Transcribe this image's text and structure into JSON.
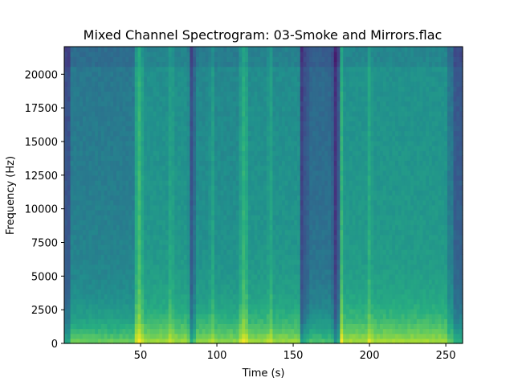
{
  "chart_data": {
    "type": "heatmap",
    "title": "Mixed Channel Spectrogram: 03-Smoke and Mirrors.flac",
    "xlabel": "Time (s)",
    "ylabel": "Frequency (Hz)",
    "xlim": [
      0,
      261
    ],
    "ylim": [
      0,
      22050
    ],
    "x_ticks": [
      50,
      100,
      150,
      200,
      250
    ],
    "y_ticks": [
      0,
      2500,
      5000,
      7500,
      10000,
      12500,
      15000,
      17500,
      20000
    ],
    "x_tick_labels": [
      "50",
      "100",
      "150",
      "200",
      "250"
    ],
    "y_tick_labels": [
      "0",
      "2500",
      "5000",
      "7500",
      "10000",
      "12500",
      "15000",
      "17500",
      "20000"
    ],
    "colormap": "viridis",
    "grid": false,
    "sections": [
      {
        "t_start": 0,
        "t_end": 5,
        "level": 0.3
      },
      {
        "t_start": 5,
        "t_end": 47,
        "level": 0.46
      },
      {
        "t_start": 47,
        "t_end": 52,
        "level": 0.62
      },
      {
        "t_start": 52,
        "t_end": 82,
        "level": 0.55
      },
      {
        "t_start": 82,
        "t_end": 86,
        "level": 0.4
      },
      {
        "t_start": 86,
        "t_end": 115,
        "level": 0.52
      },
      {
        "t_start": 115,
        "t_end": 120,
        "level": 0.6
      },
      {
        "t_start": 120,
        "t_end": 155,
        "level": 0.54
      },
      {
        "t_start": 155,
        "t_end": 160,
        "level": 0.34
      },
      {
        "t_start": 160,
        "t_end": 176,
        "level": 0.4
      },
      {
        "t_start": 176,
        "t_end": 180,
        "level": 0.28
      },
      {
        "t_start": 180,
        "t_end": 183,
        "level": 0.62
      },
      {
        "t_start": 183,
        "t_end": 251,
        "level": 0.56
      },
      {
        "t_start": 251,
        "t_end": 255,
        "level": 0.45
      },
      {
        "t_start": 255,
        "t_end": 261,
        "level": 0.33
      }
    ],
    "bright_lines_s": [
      49,
      70,
      97,
      118,
      135,
      181,
      200
    ],
    "dark_lines_s": [
      83,
      156,
      177
    ]
  }
}
